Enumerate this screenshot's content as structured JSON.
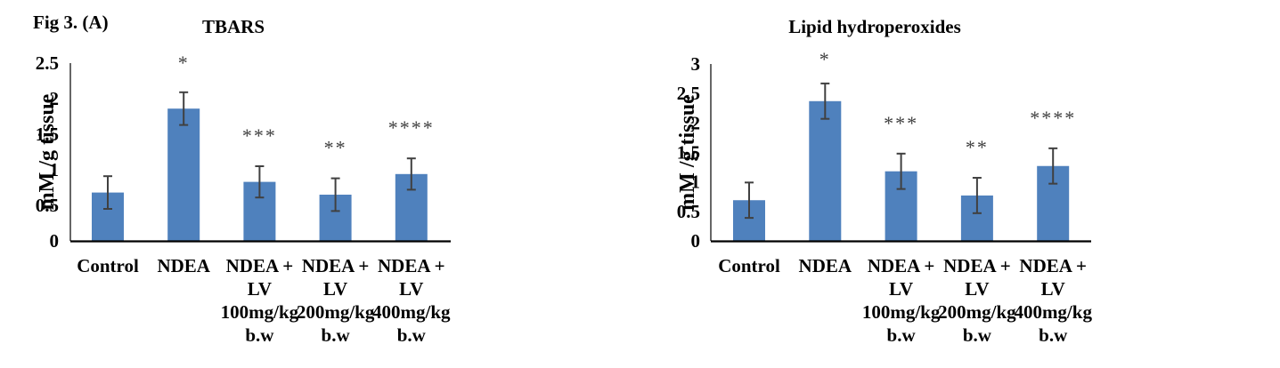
{
  "figure_label": "Fig 3. (A)",
  "chart_data": [
    {
      "type": "bar",
      "title": "TBARS",
      "xlabel": "",
      "ylabel": "mM /g tissue",
      "ylim": [
        0,
        2.5
      ],
      "yticks": [
        0,
        0.5,
        1,
        1.5,
        2,
        2.5
      ],
      "ytick_labels": [
        "0",
        "0.5",
        "1",
        "1.5",
        "2",
        "2.5"
      ],
      "grid": false,
      "legend": "none",
      "bar_color": "#4f81bd",
      "error_color": "#404040",
      "categories": [
        [
          "Control"
        ],
        [
          "NDEA"
        ],
        [
          "NDEA +",
          "LV",
          "100mg/kg",
          "b.w"
        ],
        [
          "NDEA +",
          "LV",
          "200mg/kg",
          "b.w"
        ],
        [
          "NDEA +",
          "LV",
          "400mg/kg",
          "b.w"
        ]
      ],
      "values": [
        0.68,
        1.86,
        0.83,
        0.65,
        0.94
      ],
      "errors": [
        0.23,
        0.23,
        0.22,
        0.23,
        0.22
      ],
      "significance": [
        "",
        "*",
        "***",
        "**",
        "****"
      ]
    },
    {
      "type": "bar",
      "title": "Lipid  hydroperoxides",
      "xlabel": "",
      "ylabel": "mM /g tissue",
      "ylim": [
        0,
        3
      ],
      "yticks": [
        0,
        0.5,
        1,
        1.5,
        2,
        2.5,
        3
      ],
      "ytick_labels": [
        "0",
        "0.5",
        "1",
        "1.5",
        "2",
        "2.5",
        "3"
      ],
      "grid": false,
      "legend": "none",
      "bar_color": "#4f81bd",
      "error_color": "#404040",
      "categories": [
        [
          "Control"
        ],
        [
          "NDEA"
        ],
        [
          "NDEA +",
          "LV",
          "100mg/kg",
          "b.w"
        ],
        [
          "NDEA +",
          "LV",
          "200mg/kg",
          "b.w"
        ],
        [
          "NDEA +",
          "LV",
          "400mg/kg",
          "b.w"
        ]
      ],
      "values": [
        0.69,
        2.37,
        1.18,
        0.77,
        1.27
      ],
      "errors": [
        0.3,
        0.3,
        0.3,
        0.3,
        0.3
      ],
      "significance": [
        "",
        "*",
        "***",
        "**",
        "****"
      ]
    }
  ]
}
